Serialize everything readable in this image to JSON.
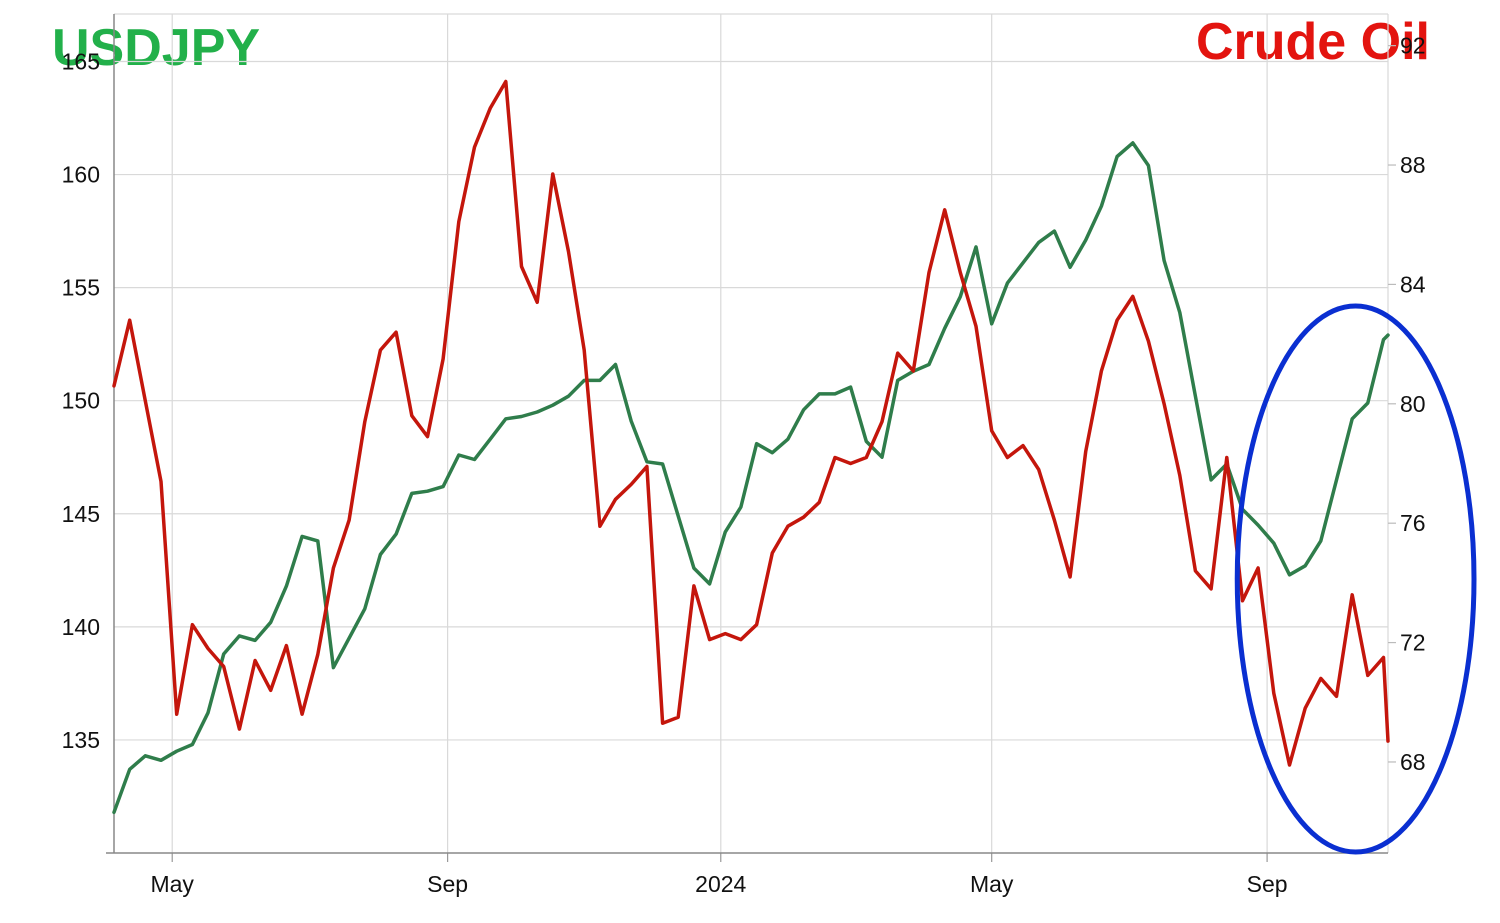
{
  "titles": {
    "left": "USDJPY",
    "right": "Crude Oil"
  },
  "colors": {
    "usdjpy": "#2f7d4b",
    "oil": "#c4160c",
    "title_left": "#22b04a",
    "title_right": "#e3140f",
    "highlight": "#0a2fd1"
  },
  "chart_data": {
    "type": "line",
    "x_ticks": [
      {
        "label": "May",
        "date": "2023-05-01"
      },
      {
        "label": "Sep",
        "date": "2023-09-01"
      },
      {
        "label": "2024",
        "date": "2024-01-01"
      },
      {
        "label": "May",
        "date": "2024-05-01"
      },
      {
        "label": "Sep",
        "date": "2024-09-01"
      }
    ],
    "xlim": [
      "2023-04-05",
      "2024-10-25"
    ],
    "y_left": {
      "ticks": [
        135,
        140,
        145,
        150,
        155,
        160,
        165
      ],
      "ylim": [
        130.0,
        167.1
      ]
    },
    "y_right": {
      "ticks": [
        68,
        72,
        76,
        80,
        84,
        88,
        92
      ],
      "ylim": [
        64.95,
        93.06
      ]
    },
    "grid": true,
    "series": [
      {
        "name": "USDJPY",
        "axis": "left",
        "points": [
          [
            "2023-04-05",
            131.8
          ],
          [
            "2023-04-12",
            133.7
          ],
          [
            "2023-04-19",
            134.3
          ],
          [
            "2023-04-26",
            134.1
          ],
          [
            "2023-05-03",
            134.5
          ],
          [
            "2023-05-10",
            134.8
          ],
          [
            "2023-05-17",
            136.2
          ],
          [
            "2023-05-24",
            138.8
          ],
          [
            "2023-05-31",
            139.6
          ],
          [
            "2023-06-07",
            139.4
          ],
          [
            "2023-06-14",
            140.2
          ],
          [
            "2023-06-21",
            141.8
          ],
          [
            "2023-06-28",
            144.0
          ],
          [
            "2023-07-05",
            143.8
          ],
          [
            "2023-07-12",
            138.2
          ],
          [
            "2023-07-19",
            139.5
          ],
          [
            "2023-07-26",
            140.8
          ],
          [
            "2023-08-02",
            143.2
          ],
          [
            "2023-08-09",
            144.1
          ],
          [
            "2023-08-16",
            145.9
          ],
          [
            "2023-08-23",
            146.0
          ],
          [
            "2023-08-30",
            146.2
          ],
          [
            "2023-09-06",
            147.6
          ],
          [
            "2023-09-13",
            147.4
          ],
          [
            "2023-09-20",
            148.3
          ],
          [
            "2023-09-27",
            149.2
          ],
          [
            "2023-10-04",
            149.3
          ],
          [
            "2023-10-11",
            149.5
          ],
          [
            "2023-10-18",
            149.8
          ],
          [
            "2023-10-25",
            150.2
          ],
          [
            "2023-11-01",
            150.9
          ],
          [
            "2023-11-08",
            150.9
          ],
          [
            "2023-11-15",
            151.6
          ],
          [
            "2023-11-22",
            149.1
          ],
          [
            "2023-11-29",
            147.3
          ],
          [
            "2023-12-06",
            147.2
          ],
          [
            "2023-12-13",
            144.9
          ],
          [
            "2023-12-20",
            142.6
          ],
          [
            "2023-12-27",
            141.9
          ],
          [
            "2024-01-03",
            144.2
          ],
          [
            "2024-01-10",
            145.3
          ],
          [
            "2024-01-17",
            148.1
          ],
          [
            "2024-01-24",
            147.7
          ],
          [
            "2024-01-31",
            148.3
          ],
          [
            "2024-02-07",
            149.6
          ],
          [
            "2024-02-14",
            150.3
          ],
          [
            "2024-02-21",
            150.3
          ],
          [
            "2024-02-28",
            150.6
          ],
          [
            "2024-03-06",
            148.2
          ],
          [
            "2024-03-13",
            147.5
          ],
          [
            "2024-03-20",
            150.9
          ],
          [
            "2024-03-27",
            151.3
          ],
          [
            "2024-04-03",
            151.6
          ],
          [
            "2024-04-10",
            153.2
          ],
          [
            "2024-04-17",
            154.6
          ],
          [
            "2024-04-24",
            156.8
          ],
          [
            "2024-05-01",
            153.4
          ],
          [
            "2024-05-08",
            155.2
          ],
          [
            "2024-05-15",
            156.1
          ],
          [
            "2024-05-22",
            157.0
          ],
          [
            "2024-05-29",
            157.5
          ],
          [
            "2024-06-05",
            155.9
          ],
          [
            "2024-06-12",
            157.1
          ],
          [
            "2024-06-19",
            158.6
          ],
          [
            "2024-06-26",
            160.8
          ],
          [
            "2024-07-03",
            161.4
          ],
          [
            "2024-07-10",
            160.4
          ],
          [
            "2024-07-17",
            156.2
          ],
          [
            "2024-07-24",
            153.9
          ],
          [
            "2024-07-31",
            150.2
          ],
          [
            "2024-08-07",
            146.5
          ],
          [
            "2024-08-14",
            147.2
          ],
          [
            "2024-08-21",
            145.2
          ],
          [
            "2024-08-28",
            144.5
          ],
          [
            "2024-09-04",
            143.7
          ],
          [
            "2024-09-11",
            142.3
          ],
          [
            "2024-09-18",
            142.7
          ],
          [
            "2024-09-25",
            143.8
          ],
          [
            "2024-10-02",
            146.5
          ],
          [
            "2024-10-09",
            149.2
          ],
          [
            "2024-10-16",
            149.9
          ],
          [
            "2024-10-23",
            152.7
          ],
          [
            "2024-10-25",
            152.9
          ]
        ]
      },
      {
        "name": "Crude Oil",
        "axis": "right",
        "points": [
          [
            "2023-04-05",
            80.6
          ],
          [
            "2023-04-12",
            82.8
          ],
          [
            "2023-04-19",
            80.1
          ],
          [
            "2023-04-26",
            77.4
          ],
          [
            "2023-05-03",
            69.6
          ],
          [
            "2023-05-10",
            72.6
          ],
          [
            "2023-05-17",
            71.8
          ],
          [
            "2023-05-24",
            71.2
          ],
          [
            "2023-05-31",
            69.1
          ],
          [
            "2023-06-07",
            71.4
          ],
          [
            "2023-06-14",
            70.4
          ],
          [
            "2023-06-21",
            71.9
          ],
          [
            "2023-06-28",
            69.6
          ],
          [
            "2023-07-05",
            71.6
          ],
          [
            "2023-07-12",
            74.5
          ],
          [
            "2023-07-19",
            76.1
          ],
          [
            "2023-07-26",
            79.4
          ],
          [
            "2023-08-02",
            81.8
          ],
          [
            "2023-08-09",
            82.4
          ],
          [
            "2023-08-16",
            79.6
          ],
          [
            "2023-08-23",
            78.9
          ],
          [
            "2023-08-30",
            81.5
          ],
          [
            "2023-09-06",
            86.1
          ],
          [
            "2023-09-13",
            88.6
          ],
          [
            "2023-09-20",
            89.9
          ],
          [
            "2023-09-27",
            90.8
          ],
          [
            "2023-10-04",
            84.6
          ],
          [
            "2023-10-11",
            83.4
          ],
          [
            "2023-10-18",
            87.7
          ],
          [
            "2023-10-25",
            85.1
          ],
          [
            "2023-11-01",
            81.8
          ],
          [
            "2023-11-08",
            75.9
          ],
          [
            "2023-11-15",
            76.8
          ],
          [
            "2023-11-22",
            77.3
          ],
          [
            "2023-11-29",
            77.9
          ],
          [
            "2023-12-06",
            69.3
          ],
          [
            "2023-12-13",
            69.5
          ],
          [
            "2023-12-20",
            73.9
          ],
          [
            "2023-12-27",
            72.1
          ],
          [
            "2024-01-03",
            72.3
          ],
          [
            "2024-01-10",
            72.1
          ],
          [
            "2024-01-17",
            72.6
          ],
          [
            "2024-01-24",
            75.0
          ],
          [
            "2024-01-31",
            75.9
          ],
          [
            "2024-02-07",
            76.2
          ],
          [
            "2024-02-14",
            76.7
          ],
          [
            "2024-02-21",
            78.2
          ],
          [
            "2024-02-28",
            78.0
          ],
          [
            "2024-03-06",
            78.2
          ],
          [
            "2024-03-13",
            79.4
          ],
          [
            "2024-03-20",
            81.7
          ],
          [
            "2024-03-27",
            81.1
          ],
          [
            "2024-04-03",
            84.4
          ],
          [
            "2024-04-10",
            86.5
          ],
          [
            "2024-04-17",
            84.4
          ],
          [
            "2024-04-24",
            82.6
          ],
          [
            "2024-05-01",
            79.1
          ],
          [
            "2024-05-08",
            78.2
          ],
          [
            "2024-05-15",
            78.6
          ],
          [
            "2024-05-22",
            77.8
          ],
          [
            "2024-05-29",
            76.1
          ],
          [
            "2024-06-05",
            74.2
          ],
          [
            "2024-06-12",
            78.4
          ],
          [
            "2024-06-19",
            81.1
          ],
          [
            "2024-06-26",
            82.8
          ],
          [
            "2024-07-03",
            83.6
          ],
          [
            "2024-07-10",
            82.1
          ],
          [
            "2024-07-17",
            80.0
          ],
          [
            "2024-07-24",
            77.6
          ],
          [
            "2024-07-31",
            74.4
          ],
          [
            "2024-08-07",
            73.8
          ],
          [
            "2024-08-14",
            78.2
          ],
          [
            "2024-08-21",
            73.4
          ],
          [
            "2024-08-28",
            74.5
          ],
          [
            "2024-09-04",
            70.3
          ],
          [
            "2024-09-11",
            67.9
          ],
          [
            "2024-09-18",
            69.8
          ],
          [
            "2024-09-25",
            70.8
          ],
          [
            "2024-10-02",
            70.2
          ],
          [
            "2024-10-09",
            73.6
          ],
          [
            "2024-10-16",
            70.9
          ],
          [
            "2024-10-23",
            71.5
          ],
          [
            "2024-10-25",
            68.7
          ]
        ]
      }
    ],
    "annotations": [
      {
        "type": "ellipse",
        "color": "#0a2fd1",
        "from": "2024-09-10",
        "to": "2024-10-25"
      }
    ]
  }
}
